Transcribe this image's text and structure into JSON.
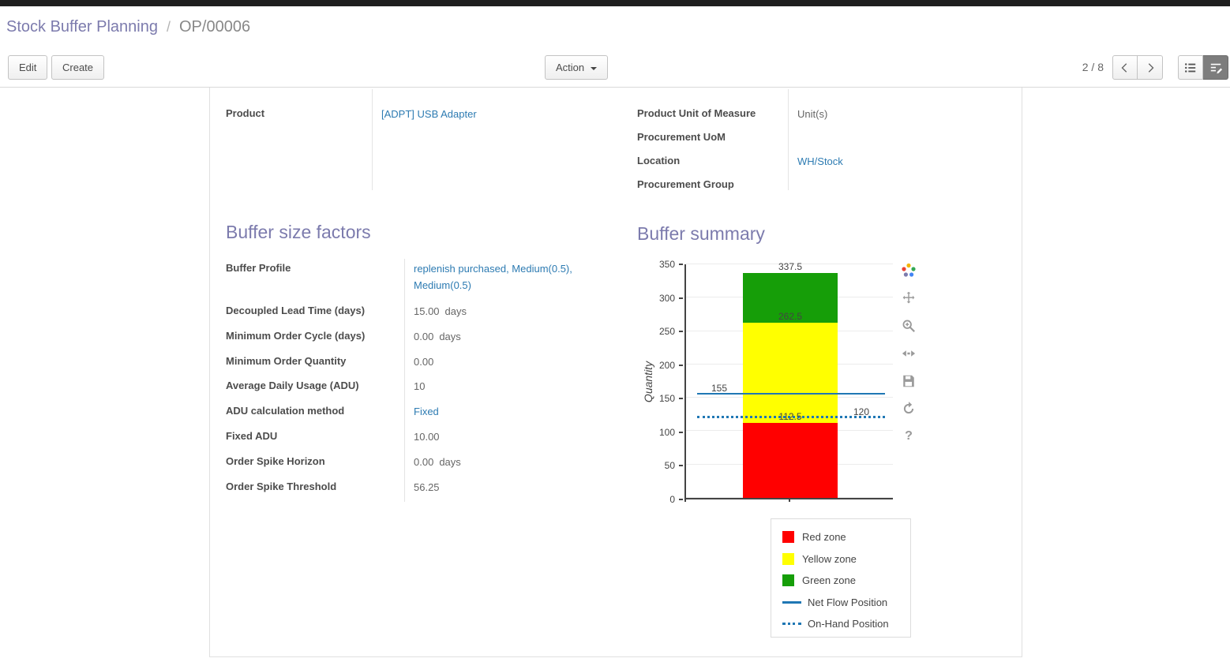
{
  "colors": {
    "accent": "#7c7bad",
    "link": "#2d7bb2"
  },
  "breadcrumb": {
    "parent": "Stock Buffer Planning",
    "separator": "/",
    "current": "OP/00006"
  },
  "control_panel": {
    "edit": "Edit",
    "create": "Create",
    "action": "Action",
    "pager": "2 / 8"
  },
  "icons": {
    "pager_prev": "chevron-left",
    "pager_next": "chevron-right",
    "view_switcher": [
      "list-view",
      "form-view"
    ],
    "chart_toolbar": [
      "plotly-logo",
      "pan",
      "zoom",
      "autoscale",
      "download",
      "reset-axes",
      "help"
    ]
  },
  "form": {
    "top_left_rows": [
      {
        "label": "Product",
        "value": "[ADPT] USB Adapter"
      }
    ],
    "top_right_rows": [
      {
        "label": "Product Unit of Measure",
        "value": "Unit(s)"
      },
      {
        "label": "Procurement UoM",
        "value": ""
      },
      {
        "label": "Location",
        "value": "WH/Stock"
      },
      {
        "label": "Procurement Group",
        "value": ""
      }
    ],
    "buffer_factors": {
      "title": "Buffer size factors",
      "rows": [
        {
          "label": "Buffer Profile",
          "value": "replenish purchased, Medium(0.5), Medium(0.5)"
        },
        {
          "label": "Decoupled Lead Time (days)",
          "value": "15.00",
          "suffix": "days"
        },
        {
          "label": "Minimum Order Cycle (days)",
          "value": "0.00",
          "suffix": "days"
        },
        {
          "label": "Minimum Order Quantity",
          "value": "0.00"
        },
        {
          "label": "Average Daily Usage (ADU)",
          "value": "10"
        },
        {
          "label": "ADU calculation method",
          "value": "Fixed"
        },
        {
          "label": "Fixed ADU",
          "value": "10.00"
        },
        {
          "label": "Order Spike Horizon",
          "value": "0.00",
          "suffix": "days"
        },
        {
          "label": "Order Spike Threshold",
          "value": "56.25"
        }
      ]
    },
    "buffer_summary_title": "Buffer summary"
  },
  "chart_data": {
    "type": "bar",
    "title": "Buffer summary",
    "xlabel": "",
    "ylabel": "Quantity",
    "ylim": [
      0,
      350
    ],
    "yticks": [
      0,
      50,
      100,
      150,
      200,
      250,
      300,
      350
    ],
    "zones": [
      {
        "name": "Red zone",
        "from": 0,
        "to": 112.5,
        "color": "#ff0000"
      },
      {
        "name": "Yellow zone",
        "from": 112.5,
        "to": 262.5,
        "color": "#ffff00"
      },
      {
        "name": "Green zone",
        "from": 262.5,
        "to": 337.5,
        "color": "#169e08"
      }
    ],
    "lines": [
      {
        "name": "Net Flow Position",
        "value": 155,
        "style": "solid",
        "color": "#1f77b4"
      },
      {
        "name": "On-Hand Position",
        "value": 120,
        "style": "dotted",
        "color": "#1f77b4"
      }
    ],
    "annotations": [
      {
        "text": "337.5",
        "value": 337.5,
        "placement": "bar-label"
      },
      {
        "text": "262.5",
        "value": 262.5,
        "placement": "bar-label"
      },
      {
        "text": "112.5",
        "value": 112.5,
        "placement": "bar-label"
      },
      {
        "text": "155",
        "value": 155,
        "placement": "left"
      },
      {
        "text": "120",
        "value": 120,
        "placement": "right"
      }
    ],
    "legend": [
      {
        "label": "Red zone",
        "swatch": "square",
        "color": "#ff0000"
      },
      {
        "label": "Yellow zone",
        "swatch": "square",
        "color": "#ffff00"
      },
      {
        "label": "Green zone",
        "swatch": "square",
        "color": "#169e08"
      },
      {
        "label": "Net Flow Position",
        "swatch": "line",
        "color": "#1f77b4"
      },
      {
        "label": "On-Hand Position",
        "swatch": "dotted",
        "color": "#1f77b4"
      }
    ],
    "legend_position": "bottom-right",
    "grid": true
  }
}
